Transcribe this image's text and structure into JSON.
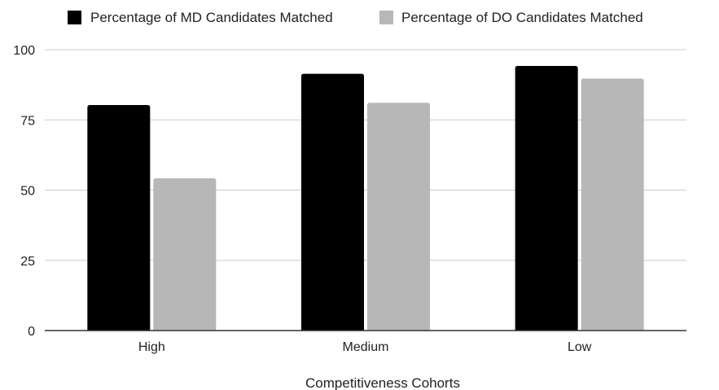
{
  "chart_data": {
    "type": "bar",
    "title": "",
    "xlabel": "Competitiveness Cohorts",
    "ylabel": "",
    "ylim": [
      0,
      100
    ],
    "yticks": [
      0,
      25,
      50,
      75,
      100
    ],
    "categories": [
      "High",
      "Medium",
      "Low"
    ],
    "series": [
      {
        "name": "Percentage of MD Candidates Matched",
        "color": "#000000",
        "values": [
          80.3,
          91.4,
          94.2
        ]
      },
      {
        "name": "Percentage of DO Candidates Matched",
        "color": "#b7b7b7",
        "values": [
          54.2,
          81.1,
          89.7
        ]
      }
    ],
    "grid": true,
    "legend_position": "top"
  }
}
